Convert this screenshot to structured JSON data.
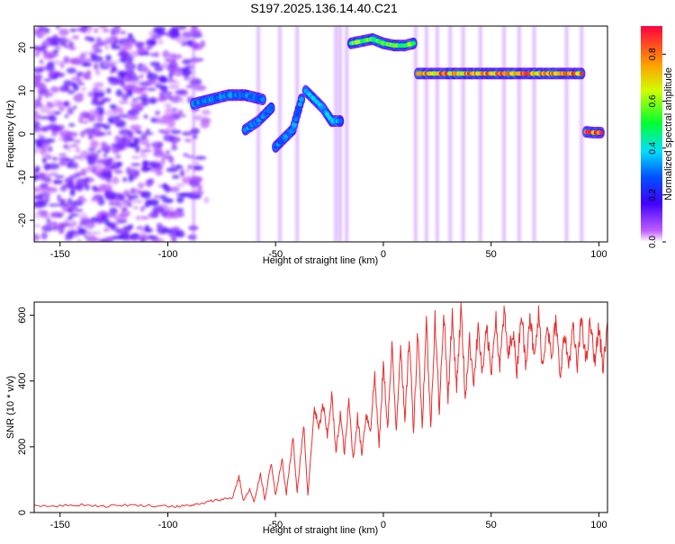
{
  "title": "S197.2025.136.14.40.C21",
  "chart_data": [
    {
      "type": "heatmap",
      "xlabel": "Height of straight line (km)",
      "ylabel": "Frequency (Hz)",
      "xlim": [
        -162,
        104
      ],
      "ylim": [
        -25,
        25
      ],
      "xticks": [
        -150,
        -100,
        -50,
        0,
        50,
        100
      ],
      "yticks": [
        -20,
        -10,
        0,
        10,
        20
      ],
      "colorbar": {
        "label": "Normalized spectral amplitude",
        "range": [
          0,
          0.92
        ],
        "ticks": [
          0.0,
          0.2,
          0.4,
          0.6,
          0.8
        ],
        "tick_labels": [
          "0.0",
          "0.2",
          "0.4",
          "0.6",
          "0.8"
        ]
      },
      "tracks": [
        {
          "x": [
            -88,
            -80,
            -72,
            -64,
            -56
          ],
          "y": [
            7,
            8,
            9,
            9,
            8
          ],
          "amp": 0.3
        },
        {
          "x": [
            -64,
            -58,
            -52
          ],
          "y": [
            1,
            3,
            6
          ],
          "amp": 0.3
        },
        {
          "x": [
            -50,
            -46,
            -42,
            -38
          ],
          "y": [
            -3,
            -1,
            1,
            8
          ],
          "amp": 0.3
        },
        {
          "x": [
            -36,
            -32,
            -28,
            -24,
            -20
          ],
          "y": [
            10,
            8,
            6,
            3,
            3
          ],
          "amp": 0.35
        },
        {
          "x": [
            -15,
            -10,
            -5,
            0,
            5,
            10,
            14
          ],
          "y": [
            21,
            21.5,
            22,
            21,
            20.5,
            20.5,
            21
          ],
          "amp": 0.55
        },
        {
          "x": [
            16,
            30,
            45,
            60,
            75,
            92
          ],
          "y": [
            14,
            14,
            14,
            14,
            14,
            14
          ],
          "amp": 0.75
        },
        {
          "x": [
            94,
            98,
            101
          ],
          "y": [
            0.5,
            0.3,
            0.3
          ],
          "amp": 0.85
        }
      ]
    },
    {
      "type": "line",
      "xlabel": "Height of straight line (km)",
      "ylabel": "SNR (10 * v/v)",
      "xlim": [
        -162,
        104
      ],
      "ylim": [
        0,
        640
      ],
      "xticks": [
        -150,
        -100,
        -50,
        0,
        50,
        100
      ],
      "yticks": [
        0,
        200,
        400,
        600
      ],
      "color": "#e83030",
      "x": [
        -162,
        -150,
        -140,
        -130,
        -120,
        -110,
        -100,
        -95,
        -90,
        -85,
        -80,
        -75,
        -70,
        -67,
        -65,
        -62,
        -60,
        -57,
        -55,
        -52,
        -50,
        -47,
        -45,
        -42,
        -40,
        -37,
        -35,
        -32,
        -30,
        -28,
        -26,
        -24,
        -22,
        -20,
        -18,
        -16,
        -14,
        -12,
        -10,
        -8,
        -6,
        -4,
        -2,
        0,
        2,
        4,
        6,
        8,
        10,
        12,
        14,
        16,
        18,
        20,
        22,
        24,
        26,
        28,
        30,
        32,
        34,
        36,
        38,
        40,
        42,
        44,
        46,
        48,
        50,
        52,
        54,
        56,
        58,
        60,
        62,
        64,
        66,
        68,
        70,
        72,
        74,
        76,
        78,
        80,
        82,
        84,
        86,
        88,
        90,
        92,
        94,
        96,
        98,
        100,
        102,
        104
      ],
      "values": [
        22,
        20,
        24,
        19,
        23,
        21,
        20,
        18,
        22,
        25,
        35,
        40,
        45,
        110,
        35,
        70,
        30,
        120,
        40,
        150,
        50,
        160,
        55,
        230,
        60,
        270,
        50,
        320,
        250,
        330,
        230,
        360,
        180,
        300,
        180,
        340,
        160,
        290,
        180,
        300,
        250,
        420,
        200,
        450,
        260,
        500,
        250,
        520,
        270,
        540,
        250,
        560,
        260,
        580,
        260,
        600,
        300,
        620,
        350,
        600,
        380,
        620,
        350,
        520,
        400,
        560,
        420,
        560,
        420,
        600,
        440,
        610,
        470,
        560,
        430,
        620,
        450,
        610,
        460,
        600,
        440,
        590,
        460,
        580,
        420,
        540,
        450,
        560,
        440,
        600,
        450,
        580,
        460,
        560,
        440,
        580
      ]
    }
  ]
}
